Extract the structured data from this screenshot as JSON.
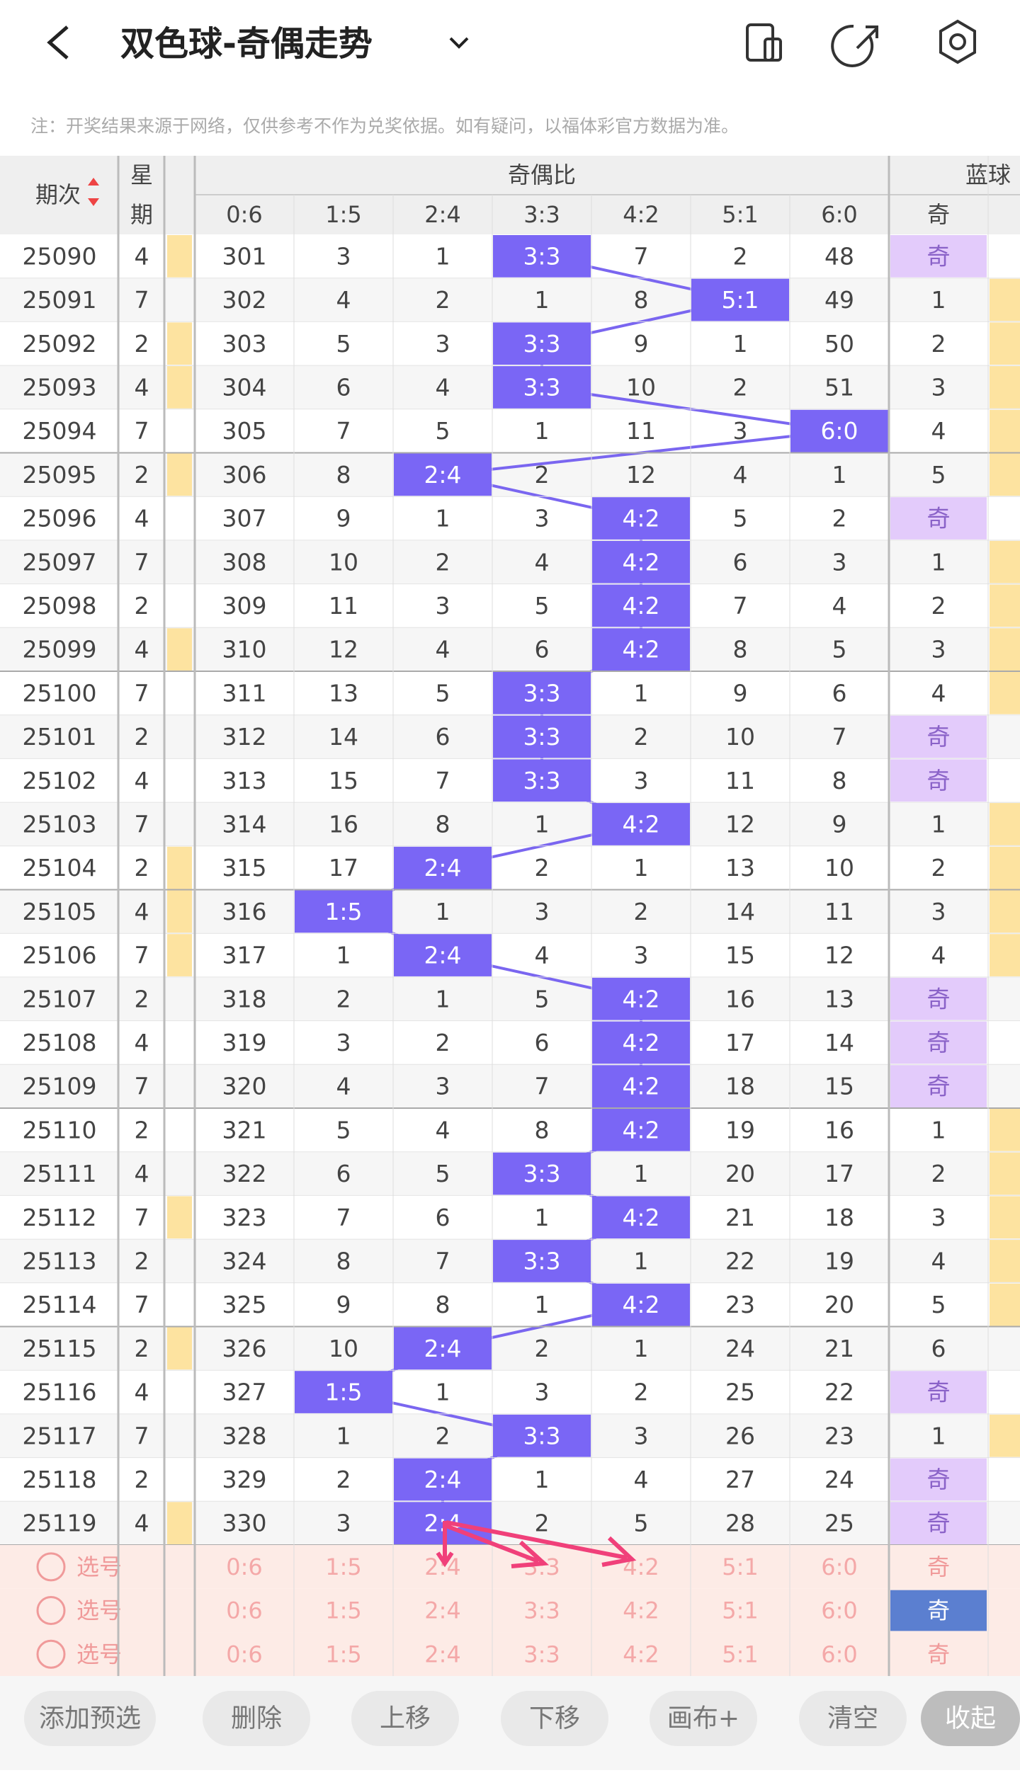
{
  "header": {
    "title": "双色球-奇偶走势",
    "note": "注：开奖结果来源于网络，仅供参考不作为兑奖依据。如有疑问，以福体彩官方数据为准。"
  },
  "table": {
    "issue_header": "期次",
    "weekday_header": [
      "星",
      "期"
    ],
    "ratio_group": "奇偶比",
    "blue_group": "蓝球",
    "blue_sub": "奇",
    "ratio_headers": [
      "0:6",
      "1:5",
      "2:4",
      "3:3",
      "4:2",
      "5:1",
      "6:0"
    ],
    "rows": [
      {
        "issue": 25090,
        "weekday": 4,
        "cells": [
          301,
          3,
          1,
          "3:3",
          7,
          2,
          48
        ],
        "blue": "奇"
      },
      {
        "issue": 25091,
        "weekday": 7,
        "cells": [
          302,
          4,
          2,
          1,
          8,
          "5:1",
          49
        ],
        "blue": 1
      },
      {
        "issue": 25092,
        "weekday": 2,
        "cells": [
          303,
          5,
          3,
          "3:3",
          9,
          1,
          50
        ],
        "blue": 2
      },
      {
        "issue": 25093,
        "weekday": 4,
        "cells": [
          304,
          6,
          4,
          "3:3",
          10,
          2,
          51
        ],
        "blue": 3
      },
      {
        "issue": 25094,
        "weekday": 7,
        "cells": [
          305,
          7,
          5,
          1,
          11,
          3,
          "6:0"
        ],
        "blue": 4
      },
      {
        "issue": 25095,
        "weekday": 2,
        "cells": [
          306,
          8,
          "2:4",
          2,
          12,
          4,
          1
        ],
        "blue": 5
      },
      {
        "issue": 25096,
        "weekday": 4,
        "cells": [
          307,
          9,
          1,
          3,
          "4:2",
          5,
          2
        ],
        "blue": "奇"
      },
      {
        "issue": 25097,
        "weekday": 7,
        "cells": [
          308,
          10,
          2,
          4,
          "4:2",
          6,
          3
        ],
        "blue": 1
      },
      {
        "issue": 25098,
        "weekday": 2,
        "cells": [
          309,
          11,
          3,
          5,
          "4:2",
          7,
          4
        ],
        "blue": 2
      },
      {
        "issue": 25099,
        "weekday": 4,
        "cells": [
          310,
          12,
          4,
          6,
          "4:2",
          8,
          5
        ],
        "blue": 3
      },
      {
        "issue": 25100,
        "weekday": 7,
        "cells": [
          311,
          13,
          5,
          "3:3",
          1,
          9,
          6
        ],
        "blue": 4
      },
      {
        "issue": 25101,
        "weekday": 2,
        "cells": [
          312,
          14,
          6,
          "3:3",
          2,
          10,
          7
        ],
        "blue": "奇"
      },
      {
        "issue": 25102,
        "weekday": 4,
        "cells": [
          313,
          15,
          7,
          "3:3",
          3,
          11,
          8
        ],
        "blue": "奇"
      },
      {
        "issue": 25103,
        "weekday": 7,
        "cells": [
          314,
          16,
          8,
          1,
          "4:2",
          12,
          9
        ],
        "blue": 1
      },
      {
        "issue": 25104,
        "weekday": 2,
        "cells": [
          315,
          17,
          "2:4",
          2,
          1,
          13,
          10
        ],
        "blue": 2
      },
      {
        "issue": 25105,
        "weekday": 4,
        "cells": [
          316,
          "1:5",
          1,
          3,
          2,
          14,
          11
        ],
        "blue": 3
      },
      {
        "issue": 25106,
        "weekday": 7,
        "cells": [
          317,
          1,
          "2:4",
          4,
          3,
          15,
          12
        ],
        "blue": 4
      },
      {
        "issue": 25107,
        "weekday": 2,
        "cells": [
          318,
          2,
          1,
          5,
          "4:2",
          16,
          13
        ],
        "blue": "奇"
      },
      {
        "issue": 25108,
        "weekday": 4,
        "cells": [
          319,
          3,
          2,
          6,
          "4:2",
          17,
          14
        ],
        "blue": "奇"
      },
      {
        "issue": 25109,
        "weekday": 7,
        "cells": [
          320,
          4,
          3,
          7,
          "4:2",
          18,
          15
        ],
        "blue": "奇"
      },
      {
        "issue": 25110,
        "weekday": 2,
        "cells": [
          321,
          5,
          4,
          8,
          "4:2",
          19,
          16
        ],
        "blue": 1
      },
      {
        "issue": 25111,
        "weekday": 4,
        "cells": [
          322,
          6,
          5,
          "3:3",
          1,
          20,
          17
        ],
        "blue": 2
      },
      {
        "issue": 25112,
        "weekday": 7,
        "cells": [
          323,
          7,
          6,
          1,
          "4:2",
          21,
          18
        ],
        "blue": 3
      },
      {
        "issue": 25113,
        "weekday": 2,
        "cells": [
          324,
          8,
          7,
          "3:3",
          1,
          22,
          19
        ],
        "blue": 4
      },
      {
        "issue": 25114,
        "weekday": 7,
        "cells": [
          325,
          9,
          8,
          1,
          "4:2",
          23,
          20
        ],
        "blue": 5
      },
      {
        "issue": 25115,
        "weekday": 2,
        "cells": [
          326,
          10,
          "2:4",
          2,
          1,
          24,
          21
        ],
        "blue": 6
      },
      {
        "issue": 25116,
        "weekday": 4,
        "cells": [
          327,
          "1:5",
          1,
          3,
          2,
          25,
          22
        ],
        "blue": "奇"
      },
      {
        "issue": 25117,
        "weekday": 7,
        "cells": [
          328,
          1,
          2,
          "3:3",
          3,
          26,
          23
        ],
        "blue": 1
      },
      {
        "issue": 25118,
        "weekday": 2,
        "cells": [
          329,
          2,
          "2:4",
          1,
          4,
          27,
          24
        ],
        "blue": "奇"
      },
      {
        "issue": 25119,
        "weekday": 4,
        "cells": [
          330,
          3,
          "2:4",
          2,
          5,
          28,
          25
        ],
        "blue": "奇"
      }
    ]
  },
  "selection": [
    {
      "label": "选号",
      "blue": "奇"
    },
    {
      "label": "选号",
      "blue": "奇"
    },
    {
      "label": "选号",
      "blue": "奇"
    }
  ],
  "buttons": [
    "添加预选",
    "删除",
    "上移",
    "下移",
    "画布+",
    "清空",
    "收起"
  ]
}
